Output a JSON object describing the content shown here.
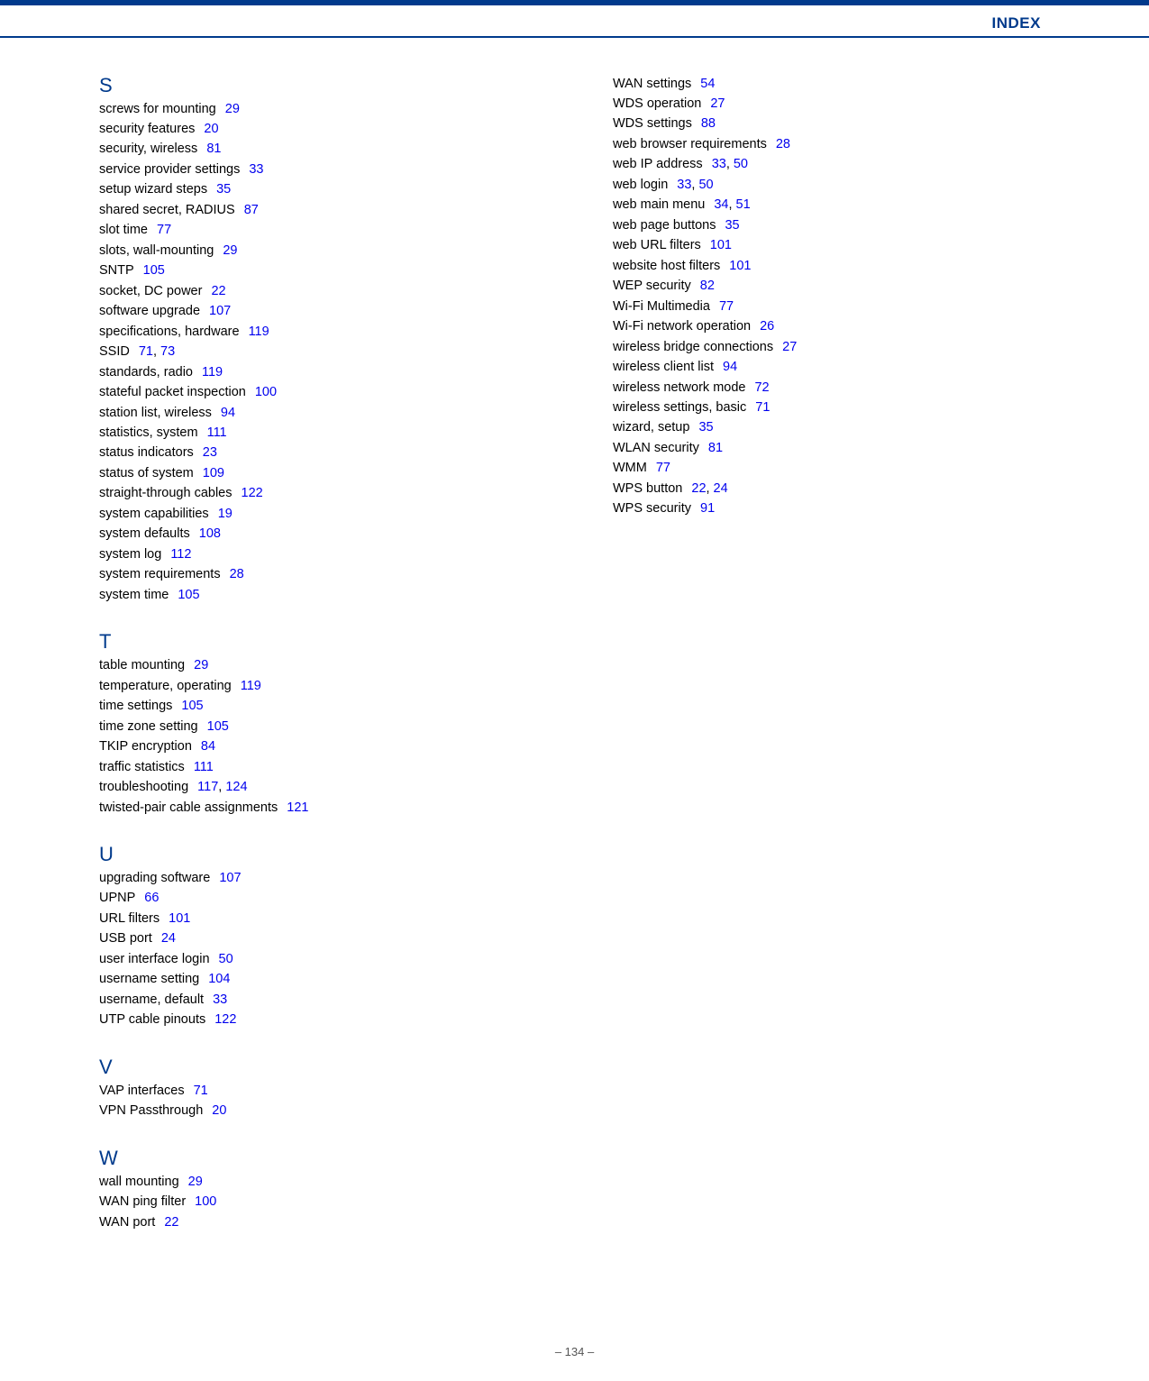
{
  "header": {
    "title": "INDEX"
  },
  "footer": {
    "page": "–  134  –"
  },
  "colors": {
    "accent": "#003a8c",
    "link": "#0000ee",
    "text": "#000000",
    "footer": "#555555"
  },
  "column1": {
    "sections": [
      {
        "letter": "S",
        "entries": [
          {
            "term": "screws for mounting",
            "pages": [
              "29"
            ]
          },
          {
            "term": "security features",
            "pages": [
              "20"
            ]
          },
          {
            "term": "security, wireless",
            "pages": [
              "81"
            ]
          },
          {
            "term": "service provider settings",
            "pages": [
              "33"
            ]
          },
          {
            "term": "setup wizard steps",
            "pages": [
              "35"
            ]
          },
          {
            "term": "shared secret, RADIUS",
            "pages": [
              "87"
            ]
          },
          {
            "term": "slot time",
            "pages": [
              "77"
            ]
          },
          {
            "term": "slots, wall-mounting",
            "pages": [
              "29"
            ]
          },
          {
            "term": "SNTP",
            "pages": [
              "105"
            ]
          },
          {
            "term": "socket, DC power",
            "pages": [
              "22"
            ]
          },
          {
            "term": "software upgrade",
            "pages": [
              "107"
            ]
          },
          {
            "term": "specifications, hardware",
            "pages": [
              "119"
            ]
          },
          {
            "term": "SSID",
            "pages": [
              "71",
              "73"
            ]
          },
          {
            "term": "standards, radio",
            "pages": [
              "119"
            ]
          },
          {
            "term": "stateful packet inspection",
            "pages": [
              "100"
            ]
          },
          {
            "term": "station list, wireless",
            "pages": [
              "94"
            ]
          },
          {
            "term": "statistics, system",
            "pages": [
              "111"
            ]
          },
          {
            "term": "status indicators",
            "pages": [
              "23"
            ]
          },
          {
            "term": "status of system",
            "pages": [
              "109"
            ]
          },
          {
            "term": "straight-through cables",
            "pages": [
              "122"
            ]
          },
          {
            "term": "system capabilities",
            "pages": [
              "19"
            ]
          },
          {
            "term": "system defaults",
            "pages": [
              "108"
            ]
          },
          {
            "term": "system log",
            "pages": [
              "112"
            ]
          },
          {
            "term": "system requirements",
            "pages": [
              "28"
            ]
          },
          {
            "term": "system time",
            "pages": [
              "105"
            ]
          }
        ]
      },
      {
        "letter": "T",
        "entries": [
          {
            "term": "table mounting",
            "pages": [
              "29"
            ]
          },
          {
            "term": "temperature, operating",
            "pages": [
              "119"
            ]
          },
          {
            "term": "time settings",
            "pages": [
              "105"
            ]
          },
          {
            "term": "time zone setting",
            "pages": [
              "105"
            ]
          },
          {
            "term": "TKIP encryption",
            "pages": [
              "84"
            ]
          },
          {
            "term": "traffic statistics",
            "pages": [
              "111"
            ]
          },
          {
            "term": "troubleshooting",
            "pages": [
              "117",
              "124"
            ]
          },
          {
            "term": "twisted-pair cable assignments",
            "pages": [
              "121"
            ]
          }
        ]
      },
      {
        "letter": "U",
        "entries": [
          {
            "term": "upgrading software",
            "pages": [
              "107"
            ]
          },
          {
            "term": "UPNP",
            "pages": [
              "66"
            ]
          },
          {
            "term": "URL filters",
            "pages": [
              "101"
            ]
          },
          {
            "term": "USB port",
            "pages": [
              "24"
            ]
          },
          {
            "term": "user interface login",
            "pages": [
              "50"
            ]
          },
          {
            "term": "username setting",
            "pages": [
              "104"
            ]
          },
          {
            "term": "username, default",
            "pages": [
              "33"
            ]
          },
          {
            "term": "UTP cable pinouts",
            "pages": [
              "122"
            ]
          }
        ]
      },
      {
        "letter": "V",
        "entries": [
          {
            "term": "VAP interfaces",
            "pages": [
              "71"
            ]
          },
          {
            "term": "VPN Passthrough",
            "pages": [
              "20"
            ]
          }
        ]
      },
      {
        "letter": "W",
        "entries": [
          {
            "term": "wall mounting",
            "pages": [
              "29"
            ]
          },
          {
            "term": "WAN ping filter",
            "pages": [
              "100"
            ]
          },
          {
            "term": "WAN port",
            "pages": [
              "22"
            ]
          }
        ]
      }
    ]
  },
  "column2": {
    "sections": [
      {
        "letter": "",
        "entries": [
          {
            "term": "WAN settings",
            "pages": [
              "54"
            ]
          },
          {
            "term": "WDS operation",
            "pages": [
              "27"
            ]
          },
          {
            "term": "WDS settings",
            "pages": [
              "88"
            ]
          },
          {
            "term": "web browser requirements",
            "pages": [
              "28"
            ]
          },
          {
            "term": "web IP address",
            "pages": [
              "33",
              "50"
            ]
          },
          {
            "term": "web login",
            "pages": [
              "33",
              "50"
            ]
          },
          {
            "term": "web main menu",
            "pages": [
              "34",
              "51"
            ]
          },
          {
            "term": "web page buttons",
            "pages": [
              "35"
            ]
          },
          {
            "term": "web URL filters",
            "pages": [
              "101"
            ]
          },
          {
            "term": "website host filters",
            "pages": [
              "101"
            ]
          },
          {
            "term": "WEP security",
            "pages": [
              "82"
            ]
          },
          {
            "term": "Wi-Fi Multimedia",
            "pages": [
              "77"
            ]
          },
          {
            "term": "Wi-Fi network operation",
            "pages": [
              "26"
            ]
          },
          {
            "term": "wireless bridge connections",
            "pages": [
              "27"
            ]
          },
          {
            "term": "wireless client list",
            "pages": [
              "94"
            ]
          },
          {
            "term": "wireless network mode",
            "pages": [
              "72"
            ]
          },
          {
            "term": "wireless settings, basic",
            "pages": [
              "71"
            ]
          },
          {
            "term": "wizard, setup",
            "pages": [
              "35"
            ]
          },
          {
            "term": "WLAN security",
            "pages": [
              "81"
            ]
          },
          {
            "term": "WMM",
            "pages": [
              "77"
            ]
          },
          {
            "term": "WPS button",
            "pages": [
              "22",
              "24"
            ]
          },
          {
            "term": "WPS security",
            "pages": [
              "91"
            ]
          }
        ]
      }
    ]
  }
}
